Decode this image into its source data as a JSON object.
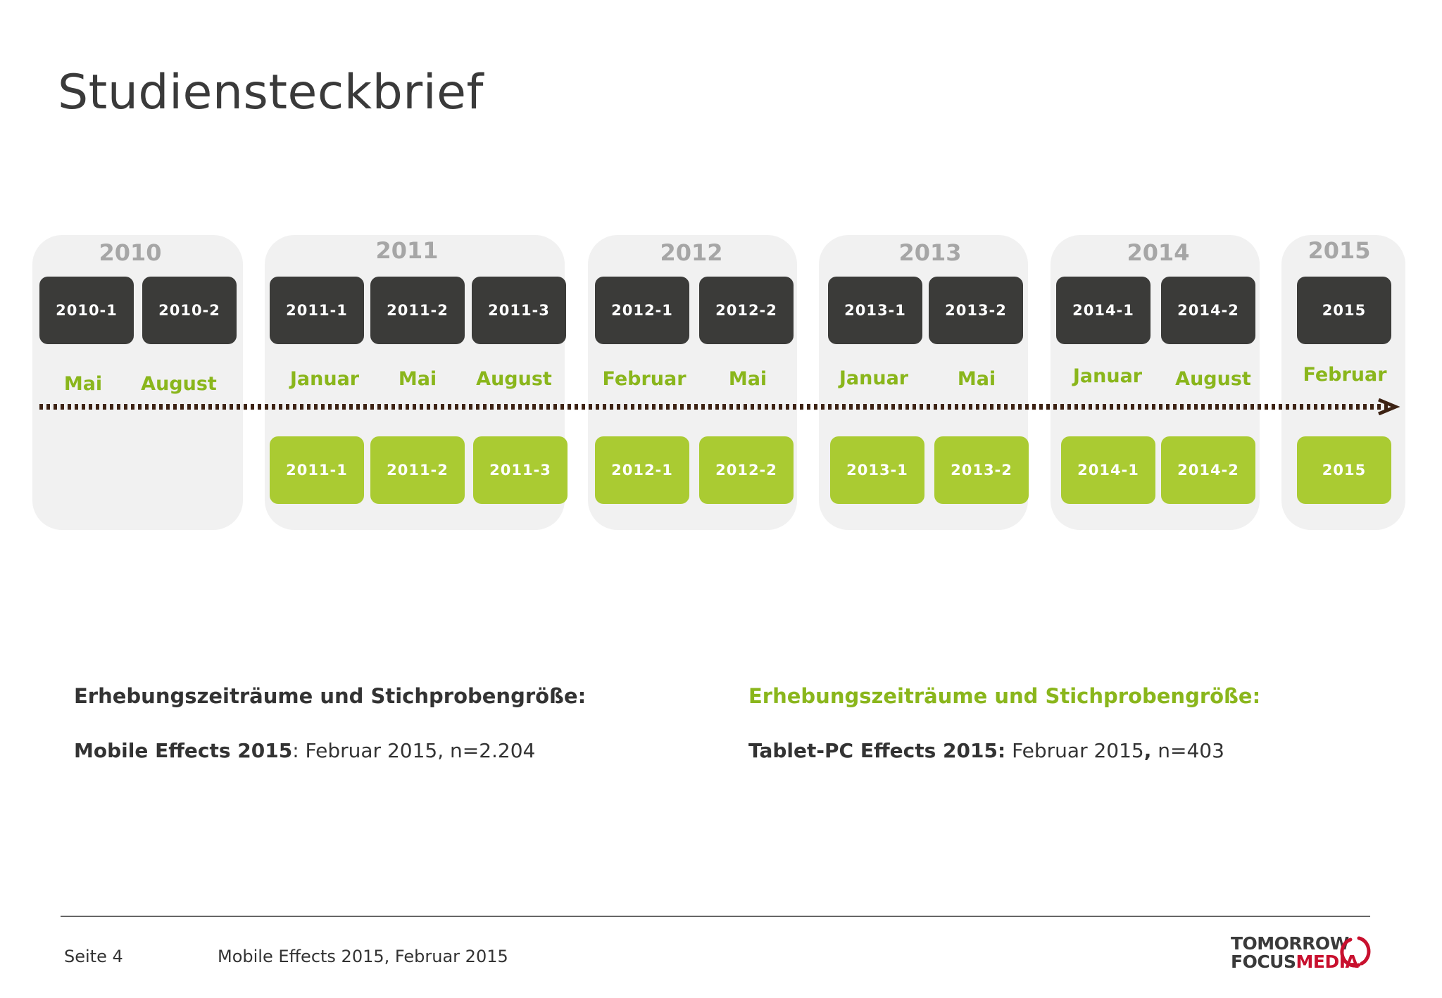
{
  "title": "Studiensteckbrief",
  "colors": {
    "dark_box": "#3b3b39",
    "green_box": "#aacb32",
    "green_text": "#8ab61c",
    "year_gray": "#a6a6a6",
    "arrow": "#3d2314",
    "logo_red": "#c8102e"
  },
  "timeline": {
    "years": [
      "2010",
      "2011",
      "2012",
      "2013",
      "2014",
      "2015"
    ],
    "mobile_waves": [
      "2010-1",
      "2010-2",
      "2011-1",
      "2011-2",
      "2011-3",
      "2012-1",
      "2012-2",
      "2013-1",
      "2013-2",
      "2014-1",
      "2014-2",
      "2015"
    ],
    "months": [
      "Mai",
      "August",
      "Januar",
      "Mai",
      "August",
      "Februar",
      "Mai",
      "Januar",
      "Mai",
      "Januar",
      "August",
      "Februar"
    ],
    "tablet_waves": [
      "2011-1",
      "2011-2",
      "2011-3",
      "2012-1",
      "2012-2",
      "2013-1",
      "2013-2",
      "2014-1",
      "2014-2",
      "2015"
    ]
  },
  "left_info": {
    "heading": "Erhebungszeiträume und Stichprobengröße:",
    "study_name": "Mobile Effects 2015",
    "details": ": Februar 2015, n=2.204"
  },
  "right_info": {
    "heading": "Erhebungszeiträume und Stichprobengröße:",
    "study_name": "Tablet-PC Effects 2015:",
    "detail_a": " Februar 2015",
    "detail_sep": ",",
    "detail_b": " n=403"
  },
  "footer": {
    "page": "Seite 4",
    "source": "Mobile Effects 2015, Februar 2015"
  },
  "logo": {
    "line1": "TOMORROW",
    "line2a": "FOCUS",
    "line2b": "MEDIA",
    "icon": "ring-logo-icon"
  }
}
